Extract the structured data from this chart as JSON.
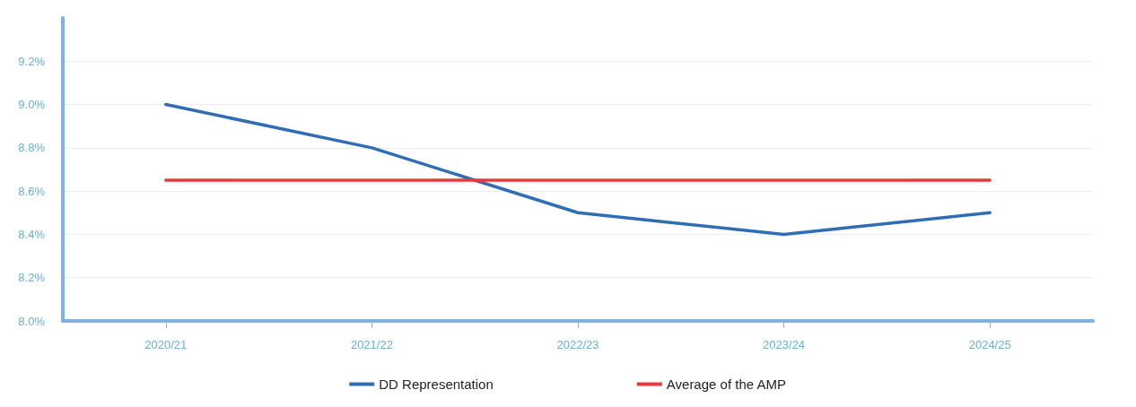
{
  "chart_data": {
    "type": "line",
    "categories": [
      "2020/21",
      "2021/22",
      "2022/23",
      "2023/24",
      "2024/25"
    ],
    "series": [
      {
        "name": "DD Representation",
        "color": "#2f6db5",
        "values": [
          9.0,
          8.8,
          8.5,
          8.4,
          8.5
        ]
      },
      {
        "name": "Average of the AMP",
        "color": "#e8393b",
        "values": [
          8.65,
          8.65,
          8.65,
          8.65,
          8.65
        ]
      }
    ],
    "ylim": [
      8.0,
      9.4
    ],
    "yticks": [
      {
        "value": 8.0,
        "label": "8.0%"
      },
      {
        "value": 8.2,
        "label": "8.2%"
      },
      {
        "value": 8.4,
        "label": "8.4%"
      },
      {
        "value": 8.6,
        "label": "8.6%"
      },
      {
        "value": 8.8,
        "label": "8.8%"
      },
      {
        "value": 9.0,
        "label": "9.0%"
      },
      {
        "value": 9.2,
        "label": "9.2%"
      }
    ],
    "grid": "y",
    "legend": "bottom",
    "marker": "none",
    "line_style": "solid"
  }
}
